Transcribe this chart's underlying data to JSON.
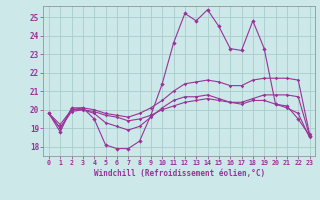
{
  "xlabel": "Windchill (Refroidissement éolien,°C)",
  "x_ticks": [
    0,
    1,
    2,
    3,
    4,
    5,
    6,
    7,
    8,
    9,
    10,
    11,
    12,
    13,
    14,
    15,
    16,
    17,
    18,
    19,
    20,
    21,
    22,
    23
  ],
  "ylim": [
    17.5,
    25.6
  ],
  "yticks": [
    18,
    19,
    20,
    21,
    22,
    23,
    24,
    25
  ],
  "background_color": "#cce8e8",
  "grid_color": "#aacccc",
  "line_color": "#993399",
  "series1": [
    19.8,
    18.8,
    20.1,
    20.1,
    19.5,
    18.1,
    17.9,
    17.9,
    18.3,
    19.7,
    21.4,
    23.6,
    25.2,
    24.8,
    25.4,
    24.5,
    23.3,
    23.2,
    24.8,
    23.3,
    20.3,
    20.2,
    19.5,
    18.6
  ],
  "series2": [
    19.8,
    19.0,
    19.9,
    20.0,
    19.9,
    19.7,
    19.6,
    19.4,
    19.5,
    19.7,
    20.0,
    20.2,
    20.4,
    20.5,
    20.6,
    20.5,
    20.4,
    20.4,
    20.6,
    20.8,
    20.8,
    20.8,
    20.7,
    18.6
  ],
  "series3": [
    19.8,
    19.2,
    20.0,
    20.1,
    20.0,
    19.8,
    19.7,
    19.6,
    19.8,
    20.1,
    20.5,
    21.0,
    21.4,
    21.5,
    21.6,
    21.5,
    21.3,
    21.3,
    21.6,
    21.7,
    21.7,
    21.7,
    21.6,
    18.7
  ],
  "series4": [
    19.8,
    19.0,
    20.0,
    20.0,
    19.8,
    19.3,
    19.1,
    18.9,
    19.1,
    19.6,
    20.1,
    20.5,
    20.7,
    20.7,
    20.8,
    20.6,
    20.4,
    20.3,
    20.5,
    20.5,
    20.3,
    20.1,
    19.8,
    18.5
  ]
}
